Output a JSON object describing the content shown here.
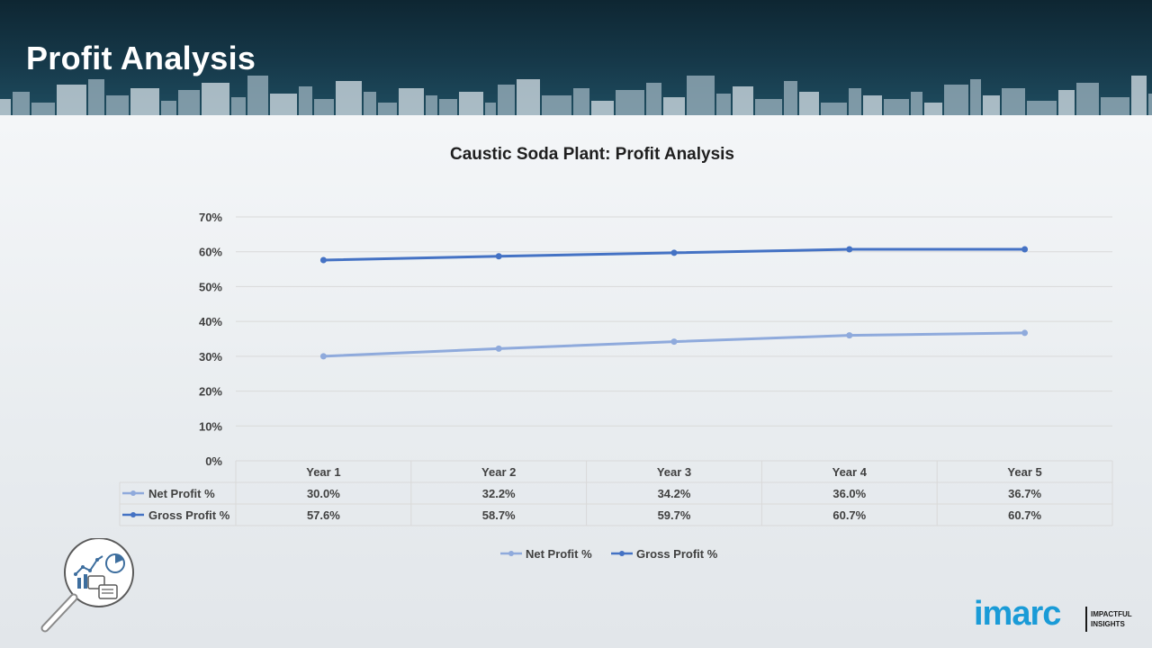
{
  "header": {
    "title": "Profit Analysis"
  },
  "colors": {
    "header_bg": "#16394a",
    "net_profit": "#8faadc",
    "gross_profit": "#4472c4",
    "logo_blue": "#1a9bd7"
  },
  "chart_data": {
    "type": "line",
    "title": "Caustic Soda Plant: Profit Analysis",
    "categories": [
      "Year 1",
      "Year 2",
      "Year 3",
      "Year 4",
      "Year 5"
    ],
    "y_ticks": [
      "0%",
      "10%",
      "20%",
      "30%",
      "40%",
      "50%",
      "60%",
      "70%"
    ],
    "ylim": [
      0,
      70
    ],
    "grid": true,
    "legend_position": "bottom",
    "series": [
      {
        "name": "Net Profit %",
        "values": [
          30.0,
          32.2,
          34.2,
          36.0,
          36.7
        ],
        "labels": [
          "30.0%",
          "32.2%",
          "34.2%",
          "36.0%",
          "36.7%"
        ],
        "color": "#8faadc"
      },
      {
        "name": "Gross Profit %",
        "values": [
          57.6,
          58.7,
          59.7,
          60.7,
          60.7
        ],
        "labels": [
          "57.6%",
          "58.7%",
          "59.7%",
          "60.7%",
          "60.7%"
        ],
        "color": "#4472c4"
      }
    ]
  },
  "logo": {
    "word": "imarc",
    "tagline_1": "IMPACTFUL",
    "tagline_2": "INSIGHTS"
  },
  "icons": [
    "skyline-graphic",
    "magnifier-analytics-icon"
  ]
}
